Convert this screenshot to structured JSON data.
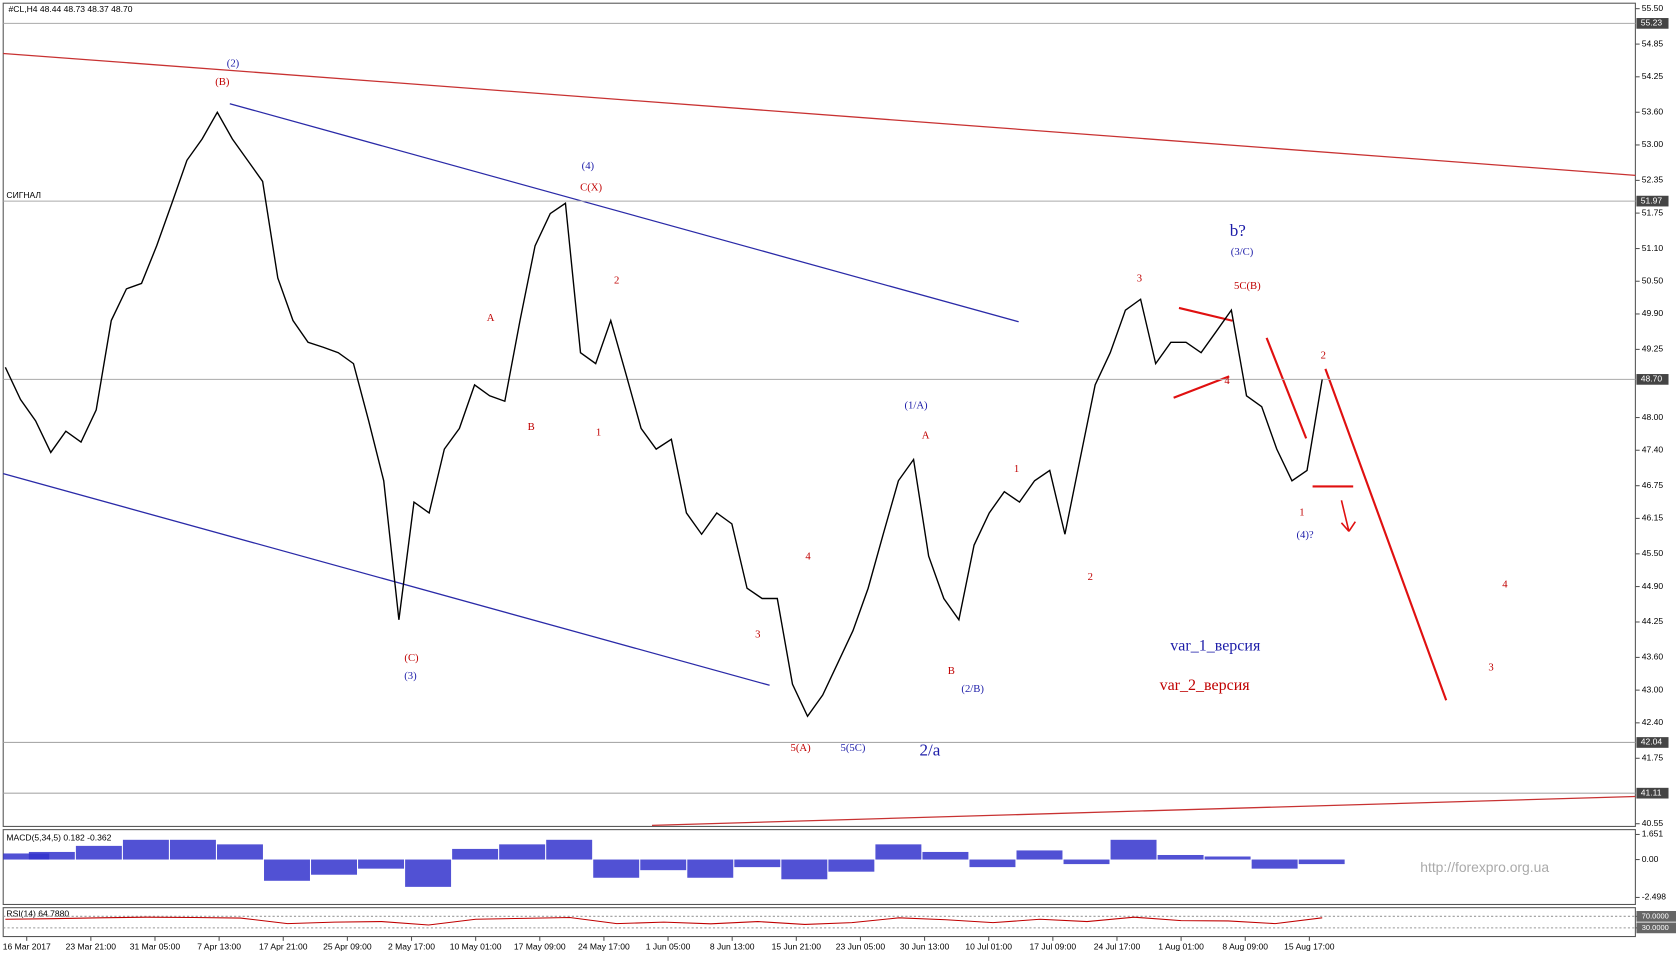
{
  "header": "#CL,H4  48.44 48.73 48.37 48.70",
  "chart_data": [
    {
      "type": "line",
      "name": "#CL,H4",
      "signal_label": "СИГНАЛ",
      "watermark": "http://forexpro.org.ua",
      "color": "#000000",
      "ylim": [
        40.5,
        55.6
      ],
      "yticks": [
        {
          "value": 55.5,
          "label": "55.50"
        },
        54.85,
        54.25,
        {
          "value": 53.6,
          "label": "53.60"
        },
        {
          "value": 53.0,
          "label": "53.00"
        },
        52.35,
        51.75,
        {
          "value": 51.1,
          "label": "51.10"
        },
        {
          "value": 50.5,
          "label": "50.50"
        },
        {
          "value": 49.9,
          "label": "49.90"
        },
        49.25,
        {
          "value": 48.0,
          "label": "48.00"
        },
        {
          "value": 47.4,
          "label": "47.40"
        },
        46.75,
        46.15,
        {
          "value": 45.5,
          "label": "45.50"
        },
        {
          "value": 44.9,
          "label": "44.90"
        },
        44.25,
        {
          "value": 43.6,
          "label": "43.60"
        },
        {
          "value": 43.0,
          "label": "43.00"
        },
        {
          "value": 42.4,
          "label": "42.40"
        },
        41.75,
        40.55
      ],
      "levels": [
        55.23,
        51.97,
        {
          "value": 48.7,
          "label": "48.70"
        },
        42.04,
        41.11
      ],
      "xticks": [
        "16 Mar 2017",
        "23 Mar 21:00",
        "31 Mar 05:00",
        "7 Apr 13:00",
        "17 Apr 21:00",
        "25 Apr 09:00",
        "2 May 17:00",
        "10 May 01:00",
        "17 May 09:00",
        "24 May 17:00",
        "1 Jun 05:00",
        "8 Jun 13:00",
        "15 Jun 21:00",
        "23 Jun 05:00",
        "30 Jun 13:00",
        "10 Jul 01:00",
        "17 Jul 09:00",
        "24 Jul 17:00",
        "1 Aug 01:00",
        "8 Aug 09:00",
        "15 Aug 17:00"
      ],
      "values": [
        48.92,
        48.33,
        47.94,
        47.36,
        47.75,
        47.55,
        48.14,
        49.78,
        50.36,
        50.46,
        51.15,
        51.93,
        52.72,
        53.11,
        53.6,
        53.11,
        52.72,
        52.33,
        50.56,
        49.78,
        49.38,
        49.29,
        49.19,
        48.99,
        47.94,
        46.84,
        44.29,
        46.45,
        46.25,
        47.42,
        47.8,
        48.6,
        48.4,
        48.3,
        49.78,
        51.15,
        51.74,
        51.93,
        49.19,
        48.99,
        49.78,
        48.8,
        47.8,
        47.42,
        47.6,
        46.25,
        45.86,
        46.25,
        46.05,
        44.87,
        44.68,
        44.68,
        43.11,
        42.52,
        42.91,
        43.5,
        44.09,
        44.87,
        45.86,
        46.84,
        47.23,
        45.46,
        44.68,
        44.29,
        45.66,
        46.25,
        46.64,
        46.45,
        46.84,
        47.03,
        45.86,
        47.23,
        48.6,
        49.19,
        49.97,
        50.17,
        48.99,
        49.38,
        49.38,
        49.19,
        49.58,
        49.97,
        48.4,
        48.2,
        47.42,
        46.84,
        47.03,
        48.7
      ],
      "annotations": [
        {
          "text": "(2)",
          "color": "#1c1ca8"
        },
        {
          "text": "(B)",
          "color": "#c00000"
        },
        {
          "text": "(4)",
          "color": "#1c1ca8"
        },
        {
          "text": "C(X)",
          "color": "#c00000"
        },
        {
          "text": "b?",
          "color": "#1c1ca8"
        },
        {
          "text": "(3/C)",
          "color": "#1c1ca8"
        },
        {
          "text": "5C(B)",
          "color": "#c00000"
        },
        {
          "text": "3",
          "color": "#c00000"
        },
        {
          "text": "2",
          "color": "#c00000"
        },
        {
          "text": "A",
          "color": "#c00000"
        },
        {
          "text": "B",
          "color": "#c00000"
        },
        {
          "text": "1",
          "color": "#c00000"
        },
        {
          "text": "(1/A)",
          "color": "#1c1ca8"
        },
        {
          "text": "A",
          "color": "#c00000"
        },
        {
          "text": "1",
          "color": "#c00000"
        },
        {
          "text": "2",
          "color": "#c00000"
        },
        {
          "text": "4",
          "color": "#c00000"
        },
        {
          "text": "1",
          "color": "#c00000"
        },
        {
          "text": "(4)?",
          "color": "#1c1ca8"
        },
        {
          "text": "2",
          "color": "#c00000"
        },
        {
          "text": "4",
          "color": "#c00000"
        },
        {
          "text": "3",
          "color": "#c00000"
        },
        {
          "text": "4",
          "color": "#c00000"
        },
        {
          "text": "3",
          "color": "#c00000"
        },
        {
          "text": "(C)",
          "color": "#c00000"
        },
        {
          "text": "(3)",
          "color": "#1c1ca8"
        },
        {
          "text": "B",
          "color": "#c00000"
        },
        {
          "text": "(2/B)",
          "color": "#1c1ca8"
        },
        {
          "text": "5(A)",
          "color": "#c00000"
        },
        {
          "text": "5(5C)",
          "color": "#1c1ca8"
        },
        {
          "text": "2/a",
          "color": "#1c1ca8"
        },
        {
          "text": "var_1_версия",
          "color": "#1c1ca8"
        },
        {
          "text": "var_2_версия",
          "color": "#c00000"
        }
      ]
    },
    {
      "type": "bar",
      "name": "MACD(5,34,5) 0.182 -0.362",
      "color": "#3333cc",
      "ylim": [
        -2.96,
        1.97
      ],
      "yticks": [
        1.651,
        {
          "value": 0,
          "label": "0.00"
        },
        -2.498
      ],
      "values": [
        0.4,
        0.5,
        0.9,
        1.3,
        1.3,
        1.0,
        -1.4,
        -1.0,
        -0.6,
        -1.8,
        0.7,
        1.0,
        1.3,
        -1.2,
        -0.7,
        -1.2,
        -0.5,
        -1.3,
        -0.8,
        1.0,
        0.5,
        -0.5,
        0.6,
        -0.3,
        1.3,
        0.3,
        0.2,
        -0.6,
        -0.3
      ]
    },
    {
      "type": "line",
      "name": "RSI(14) 64.7880",
      "color": "#c00000",
      "ylim": [
        0,
        100
      ],
      "yticks": [
        {
          "value": 70,
          "label": "70.0000"
        },
        {
          "value": 30,
          "label": "30.0000"
        }
      ],
      "values": [
        60,
        62,
        65,
        67,
        66,
        64,
        45,
        50,
        52,
        40,
        60,
        63,
        66,
        45,
        50,
        44,
        52,
        42,
        48,
        65,
        58,
        48,
        60,
        52,
        67,
        55,
        54,
        45,
        65
      ]
    }
  ]
}
